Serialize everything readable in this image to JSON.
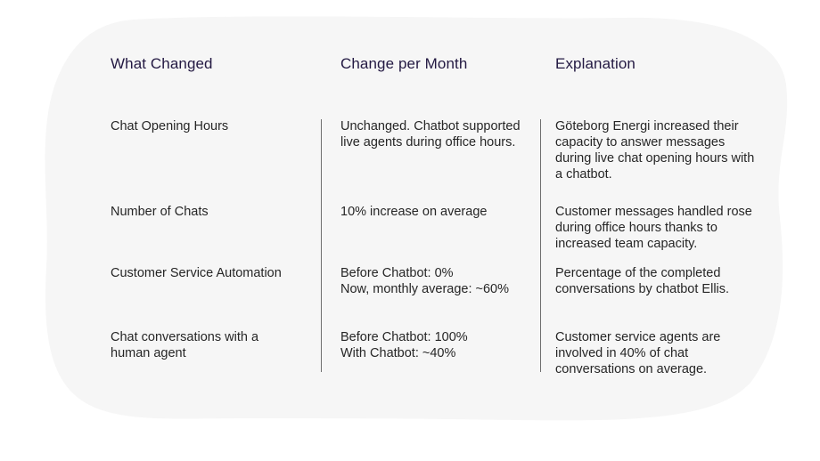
{
  "table": {
    "headers": [
      "What Changed",
      "Change per Month",
      "Explanation"
    ],
    "rows": [
      {
        "what": "Chat Opening Hours",
        "change": "Unchanged. Chatbot supported\nlive agents during office hours.",
        "explanation": "Göteborg Energi increased their\ncapacity to answer messages\nduring live chat opening hours with\na chatbot."
      },
      {
        "what": "Number of Chats",
        "change": "10% increase on average",
        "explanation": "Customer messages handled rose\nduring office hours thanks to\nincreased team capacity."
      },
      {
        "what": "Customer Service Automation",
        "change": "Before Chatbot: 0%\nNow, monthly average: ~60%",
        "explanation": "Percentage of the completed\nconversations by chatbot Ellis."
      },
      {
        "what": "Chat conversations with a\nhuman agent",
        "change": "Before Chatbot: 100%\nWith Chatbot: ~40%",
        "explanation": "Customer service agents are\ninvolved in 40% of chat\nconversations on average."
      }
    ]
  },
  "colors": {
    "background_blob": "#f6f6f6",
    "header_text": "#231942",
    "body_text": "#262626",
    "divider": "#6f6f6f"
  }
}
